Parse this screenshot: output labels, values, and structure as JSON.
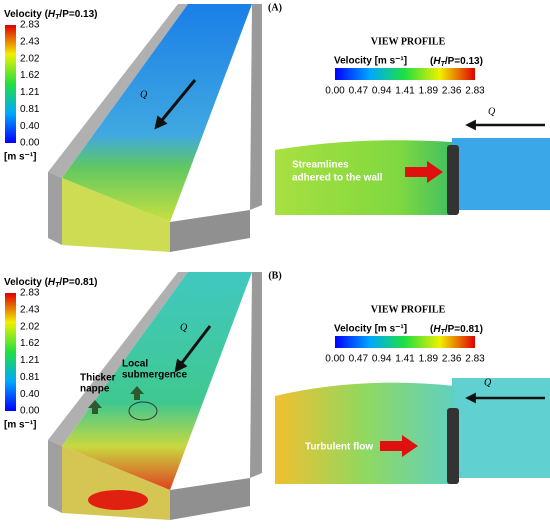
{
  "panels": [
    {
      "tag": "(A)",
      "colorbar": {
        "title": {
          "prefix": "Velocity (",
          "var": "H",
          "sub": "T",
          "suffix": "/P=0.13)"
        },
        "ticks": [
          "2.83",
          "2.43",
          "2.02",
          "1.62",
          "1.21",
          "0.81",
          "0.40",
          "0.00"
        ],
        "unit": "[m s⁻¹]"
      },
      "flow_label": "Q",
      "annotations": [],
      "profile": {
        "heading": "VIEW PROFILE",
        "colorbar": {
          "title": "Velocity [m s⁻¹]",
          "param": {
            "prefix": "(",
            "var": "H",
            "sub": "T",
            "suffix": "/P=0.13)"
          },
          "ticks": [
            "0.00",
            "0.47",
            "0.94",
            "1.41",
            "1.89",
            "2.36",
            "2.83"
          ]
        },
        "flow_label": "Q",
        "annotation": [
          "Streamlines",
          "adhered to the wall"
        ]
      }
    },
    {
      "tag": "(B)",
      "colorbar": {
        "title": {
          "prefix": "Velocity (",
          "var": "H",
          "sub": "T",
          "suffix": "/P=0.81)"
        },
        "ticks": [
          "2.83",
          "2.43",
          "2.02",
          "1.62",
          "1.21",
          "0.81",
          "0.40",
          "0.00"
        ],
        "unit": "[m s⁻¹]"
      },
      "flow_label": "Q",
      "annotations": [
        [
          "Thicker",
          "nappe"
        ],
        [
          "Local",
          "submergence"
        ]
      ],
      "profile": {
        "heading": "VIEW PROFILE",
        "colorbar": {
          "title": "Velocity [m s⁻¹]",
          "param": {
            "prefix": "(",
            "var": "H",
            "sub": "T",
            "suffix": "/P=0.81)"
          },
          "ticks": [
            "0.00",
            "0.47",
            "0.94",
            "1.41",
            "1.89",
            "2.36",
            "2.83"
          ]
        },
        "flow_label": "Q",
        "annotation": [
          "Turbulent flow"
        ]
      }
    }
  ]
}
